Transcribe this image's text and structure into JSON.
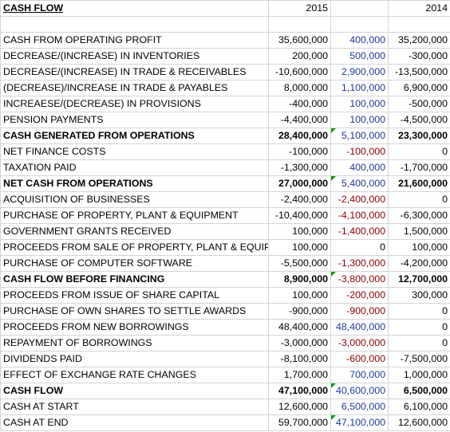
{
  "header": {
    "title": "CASH FLOW",
    "year_1": "2015",
    "year_2": "",
    "year_3": "2014"
  },
  "colors": {
    "text": "#000000",
    "positive_change": "#1f3a93",
    "negative_change": "#8b0000",
    "comment_marker": "#1f8f1f",
    "gridline": "#d4d4d4"
  },
  "rows": [
    {
      "label": "CASH FROM OPERATING PROFIT",
      "v2015": "35,600,000",
      "change": "400,000",
      "change_sign": "pos",
      "v2014": "35,200,000",
      "bold": false,
      "marker": false
    },
    {
      "label": "DECREASE/(INCREASE) IN INVENTORIES",
      "v2015": "200,000",
      "change": "500,000",
      "change_sign": "pos",
      "v2014": "-300,000",
      "bold": false,
      "marker": false
    },
    {
      "label": "DECREASE/(INCREASE) IN TRADE & RECEIVABLES",
      "v2015": "-10,600,000",
      "change": "2,900,000",
      "change_sign": "pos",
      "v2014": "-13,500,000",
      "bold": false,
      "marker": false
    },
    {
      "label": "(DECREASE)/INCREASE IN TRADE & PAYABLES",
      "v2015": "8,000,000",
      "change": "1,100,000",
      "change_sign": "pos",
      "v2014": "6,900,000",
      "bold": false,
      "marker": false
    },
    {
      "label": "INCREAESE/(DECREASE) IN PROVISIONS",
      "v2015": "-400,000",
      "change": "100,000",
      "change_sign": "pos",
      "v2014": "-500,000",
      "bold": false,
      "marker": false
    },
    {
      "label": "PENSION PAYMENTS",
      "v2015": "-4,400,000",
      "change": "100,000",
      "change_sign": "pos",
      "v2014": "-4,500,000",
      "bold": false,
      "marker": false
    },
    {
      "label": "CASH GENERATED FROM OPERATIONS",
      "v2015": "28,400,000",
      "change": "5,100,000",
      "change_sign": "pos",
      "v2014": "23,300,000",
      "bold": true,
      "marker": true
    },
    {
      "label": "NET FINANCE COSTS",
      "v2015": "-100,000",
      "change": "-100,000",
      "change_sign": "neg",
      "v2014": "0",
      "bold": false,
      "marker": false
    },
    {
      "label": "TAXATION PAID",
      "v2015": "-1,300,000",
      "change": "400,000",
      "change_sign": "pos",
      "v2014": "-1,700,000",
      "bold": false,
      "marker": false
    },
    {
      "label": "NET CASH FROM OPERATIONS",
      "v2015": "27,000,000",
      "change": "5,400,000",
      "change_sign": "pos",
      "v2014": "21,600,000",
      "bold": true,
      "marker": true
    },
    {
      "label": "ACQUISITION OF BUSINESSES",
      "v2015": "-2,400,000",
      "change": "-2,400,000",
      "change_sign": "neg",
      "v2014": "0",
      "bold": false,
      "marker": false
    },
    {
      "label": "PURCHASE OF PROPERTY, PLANT & EQUIPMENT",
      "v2015": "-10,400,000",
      "change": "-4,100,000",
      "change_sign": "neg",
      "v2014": "-6,300,000",
      "bold": false,
      "marker": false
    },
    {
      "label": "GOVERNMENT GRANTS RECEIVED",
      "v2015": "100,000",
      "change": "-1,400,000",
      "change_sign": "neg",
      "v2014": "1,500,000",
      "bold": false,
      "marker": false
    },
    {
      "label": "PROCEEDS FROM SALE OF PROPERTY, PLANT & EQUIP",
      "v2015": "100,000",
      "change": "0",
      "change_sign": "zero",
      "v2014": "100,000",
      "bold": false,
      "marker": false
    },
    {
      "label": "PURCHASE OF COMPUTER SOFTWARE",
      "v2015": "-5,500,000",
      "change": "-1,300,000",
      "change_sign": "neg",
      "v2014": "-4,200,000",
      "bold": false,
      "marker": false
    },
    {
      "label": "CASH FLOW BEFORE FINANCING",
      "v2015": "8,900,000",
      "change": "-3,800,000",
      "change_sign": "neg",
      "v2014": "12,700,000",
      "bold": true,
      "marker": true
    },
    {
      "label": "PROCEEDS FROM ISSUE OF SHARE CAPITAL",
      "v2015": "100,000",
      "change": "-200,000",
      "change_sign": "neg",
      "v2014": "300,000",
      "bold": false,
      "marker": false
    },
    {
      "label": "PURCHASE OF OWN SHARES TO SETTLE AWARDS",
      "v2015": "-900,000",
      "change": "-900,000",
      "change_sign": "neg",
      "v2014": "0",
      "bold": false,
      "marker": false
    },
    {
      "label": "PROCEEDS FROM NEW BORROWINGS",
      "v2015": "48,400,000",
      "change": "48,400,000",
      "change_sign": "pos",
      "v2014": "0",
      "bold": false,
      "marker": false
    },
    {
      "label": "REPAYMENT OF BORROWINGS",
      "v2015": "-3,000,000",
      "change": "-3,000,000",
      "change_sign": "neg",
      "v2014": "0",
      "bold": false,
      "marker": false
    },
    {
      "label": "DIVIDENDS PAID",
      "v2015": "-8,100,000",
      "change": "-600,000",
      "change_sign": "neg",
      "v2014": "-7,500,000",
      "bold": false,
      "marker": false
    },
    {
      "label": "EFFECT OF EXCHANGE RATE CHANGES",
      "v2015": "1,700,000",
      "change": "700,000",
      "change_sign": "pos",
      "v2014": "1,000,000",
      "bold": false,
      "marker": false
    },
    {
      "label": "CASH FLOW",
      "v2015": "47,100,000",
      "change": "40,600,000",
      "change_sign": "pos",
      "v2014": "6,500,000",
      "bold": true,
      "marker": true
    },
    {
      "label": "CASH AT START",
      "v2015": "12,600,000",
      "change": "6,500,000",
      "change_sign": "pos",
      "v2014": "6,100,000",
      "bold": false,
      "marker": false
    },
    {
      "label": "CASH AT END",
      "v2015": "59,700,000",
      "change": "47,100,000",
      "change_sign": "pos",
      "v2014": "12,600,000",
      "bold": false,
      "marker": true
    }
  ]
}
